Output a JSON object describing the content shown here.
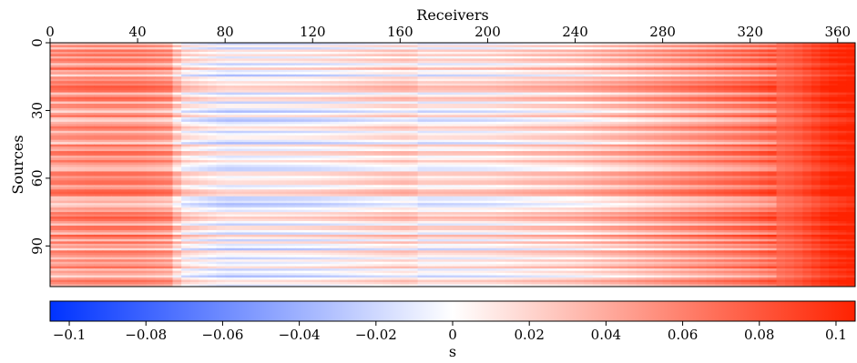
{
  "chart_data": {
    "type": "heatmap",
    "title": "",
    "xlabel": "Receivers",
    "ylabel": "Sources",
    "x_axis_position": "top",
    "xlim": [
      0,
      368
    ],
    "ylim": [
      0,
      108
    ],
    "y_inverted": true,
    "x_ticks": [
      0,
      40,
      80,
      120,
      160,
      200,
      240,
      280,
      320,
      360
    ],
    "y_ticks": [
      0,
      30,
      60,
      90
    ],
    "colorbar": {
      "label": "s",
      "range": [
        -0.105,
        0.105
      ],
      "ticks": [
        -0.1,
        -0.08,
        -0.06,
        -0.04,
        -0.02,
        0,
        0.02,
        0.04,
        0.06,
        0.08,
        0.1
      ],
      "tick_labels": [
        "−0.1",
        "−0.08",
        "−0.06",
        "−0.04",
        "−0.02",
        "0",
        "0.02",
        "0.04",
        "0.06",
        "0.08",
        "0.1"
      ],
      "colors": {
        "negative": "#0033ff",
        "zero": "#ffffff",
        "positive": "#ff2200"
      }
    },
    "x_profile": {
      "receivers": [
        0,
        20,
        40,
        55,
        60,
        80,
        120,
        165,
        170,
        200,
        220,
        240,
        260,
        280,
        300,
        320,
        340,
        355,
        368
      ],
      "values": [
        0.045,
        0.05,
        0.05,
        0.045,
        0.01,
        -0.005,
        0.0,
        0.015,
        0.005,
        0.008,
        0.015,
        0.02,
        0.03,
        0.04,
        0.05,
        0.06,
        0.075,
        0.095,
        0.105
      ]
    },
    "row_offsets": [
      -0.02,
      0.01,
      -0.02,
      0.02,
      0.0,
      0.02,
      -0.01,
      0.02,
      0.01,
      -0.02,
      0.0,
      0.03,
      -0.01,
      0.0,
      -0.03,
      0.01,
      0.0,
      0.02,
      0.01,
      0.03,
      0.025,
      0.02,
      -0.02,
      0.0,
      0.025,
      0.02,
      -0.02,
      0.01,
      0.01,
      -0.01,
      -0.03,
      0.0,
      0.02,
      -0.02,
      -0.03,
      -0.01,
      0.0,
      0.02,
      0.01,
      -0.02,
      0.0,
      0.01,
      0.01,
      -0.01,
      -0.03,
      0.02,
      0.0,
      -0.01,
      0.025,
      0.02,
      -0.01,
      0.0,
      0.02,
      0.0,
      -0.01,
      -0.02,
      -0.02,
      0.02,
      0.02,
      0.0,
      0.01,
      0.02,
      0.02,
      -0.01,
      0.0,
      0.025,
      0.03,
      0.02,
      -0.02,
      -0.02,
      -0.01,
      -0.03,
      -0.02,
      0.0,
      -0.01,
      0.02,
      0.01,
      0.03,
      0.02,
      0.0,
      -0.02,
      0.02,
      0.02,
      0.0,
      -0.02,
      0.03,
      0.01,
      -0.02,
      0.02,
      -0.01,
      0.0,
      -0.03,
      0.02,
      0.01,
      0.0,
      -0.02,
      0.01,
      -0.01,
      0.0,
      0.02,
      -0.02,
      0.0,
      -0.01,
      -0.03,
      0.0,
      0.02,
      0.01,
      -0.01
    ]
  }
}
